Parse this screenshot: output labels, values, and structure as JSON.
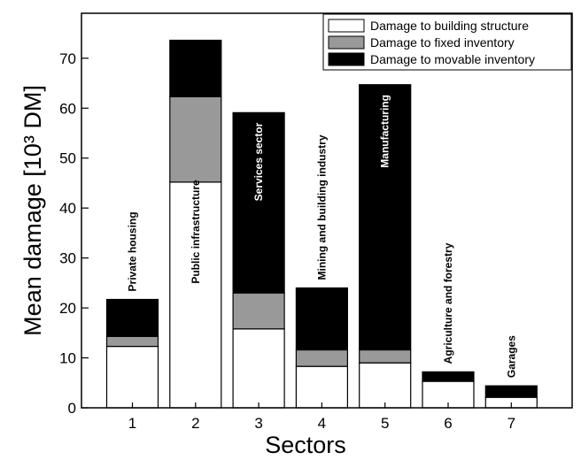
{
  "chart_data": {
    "type": "bar",
    "stacked": true,
    "xlabel": "Sectors",
    "ylabel": "Mean damage [10³ DM]",
    "ylim": [
      0,
      79
    ],
    "yticks": [
      0,
      10,
      20,
      30,
      40,
      50,
      60,
      70
    ],
    "categories": [
      "1",
      "2",
      "3",
      "4",
      "5",
      "6",
      "7"
    ],
    "bar_labels": [
      "Private housing",
      "Public infrastructure",
      "Services sector",
      "Mining and building industry",
      "Manufacturing",
      "Agriculture and forestry",
      "Garages"
    ],
    "series": [
      {
        "name": "Damage to building structure",
        "color": "#ffffff",
        "values": [
          12.3,
          45.2,
          15.8,
          8.3,
          9.0,
          5.3,
          2.1
        ]
      },
      {
        "name": "Damage to fixed inventory",
        "color": "#999999",
        "values": [
          2.0,
          17.1,
          7.2,
          3.3,
          2.6,
          0.0,
          0.0
        ]
      },
      {
        "name": "Damage to movable inventory",
        "color": "#000000",
        "values": [
          7.4,
          11.3,
          36.1,
          12.4,
          53.1,
          1.9,
          2.3
        ]
      }
    ],
    "legend_position": "top-right",
    "grid": false
  }
}
